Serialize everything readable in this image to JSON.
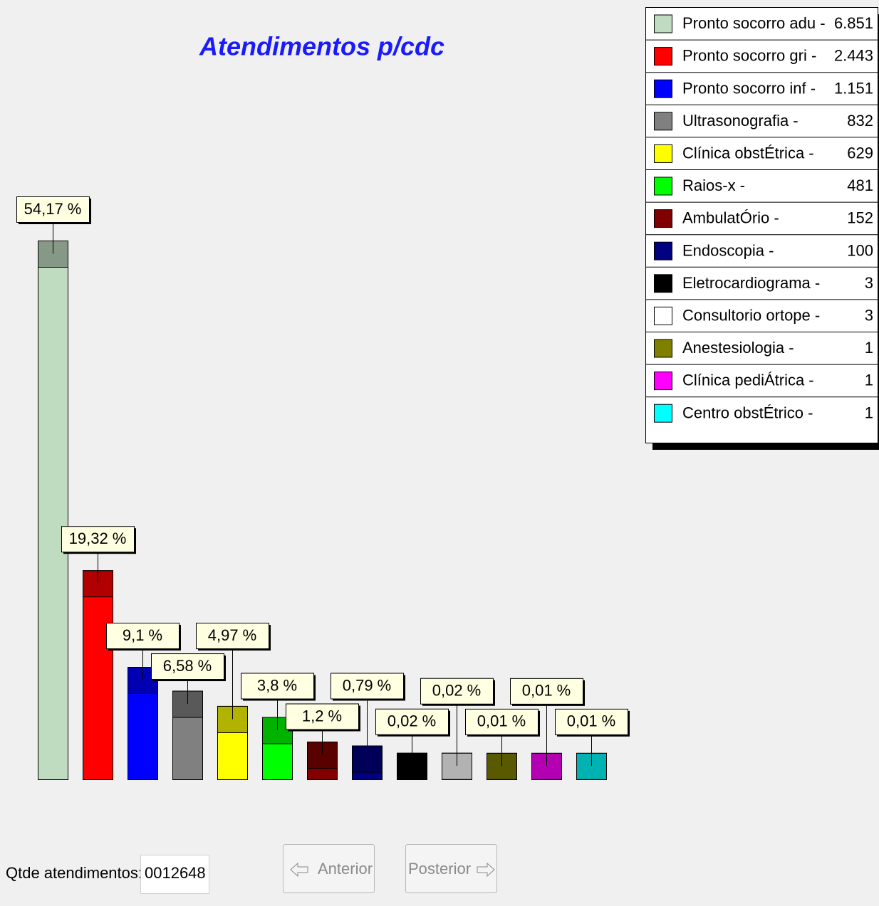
{
  "chart_data": {
    "type": "bar",
    "title": "Atendimentos p/cdc",
    "categories": [
      "Pronto socorro adu -",
      "Pronto socorro gri -",
      "Pronto socorro inf -",
      "Ultrasonografia   -",
      "Clínica obstÉtrica -",
      "Raios-x           -",
      "AmbulatÓrio       -",
      "Endoscopia        -",
      "Eletrocardiograma -",
      "Consultorio ortope -",
      "Anestesiologia    -",
      "Clínica pediÁtrica -",
      "Centro obstÉtrico  -"
    ],
    "values": [
      54.17,
      19.32,
      9.1,
      6.58,
      4.97,
      3.8,
      1.2,
      0.79,
      0.02,
      0.02,
      0.01,
      0.01,
      0.01
    ],
    "value_labels": [
      "54,17 %",
      "19,32 %",
      "9,1 %",
      "6,58 %",
      "4,97 %",
      "3,8 %",
      "1,2 %",
      "0,79 %",
      "0,02 %",
      "0,02 %",
      "0,01 %",
      "0,01 %",
      "0,01 %"
    ],
    "counts": [
      6851,
      2443,
      1151,
      832,
      629,
      481,
      152,
      100,
      3,
      3,
      1,
      1,
      1
    ],
    "count_labels": [
      "6.851",
      "2.443",
      "1.151",
      "832",
      "629",
      "481",
      "152",
      "100",
      "3",
      "3",
      "1",
      "1",
      "1"
    ],
    "colors": [
      "#c0dcc0",
      "#ff0000",
      "#0000ff",
      "#808080",
      "#ffff00",
      "#00ff00",
      "#800000",
      "#000080",
      "#000000",
      "#ffffff",
      "#808000",
      "#ff00ff",
      "#00ffff"
    ],
    "legend_position": "upper right"
  },
  "controls": {
    "count_label": "Qtde atendimentos:",
    "count_field": "0012648",
    "prev_button": "Anterior",
    "next_button": "Posterior"
  }
}
